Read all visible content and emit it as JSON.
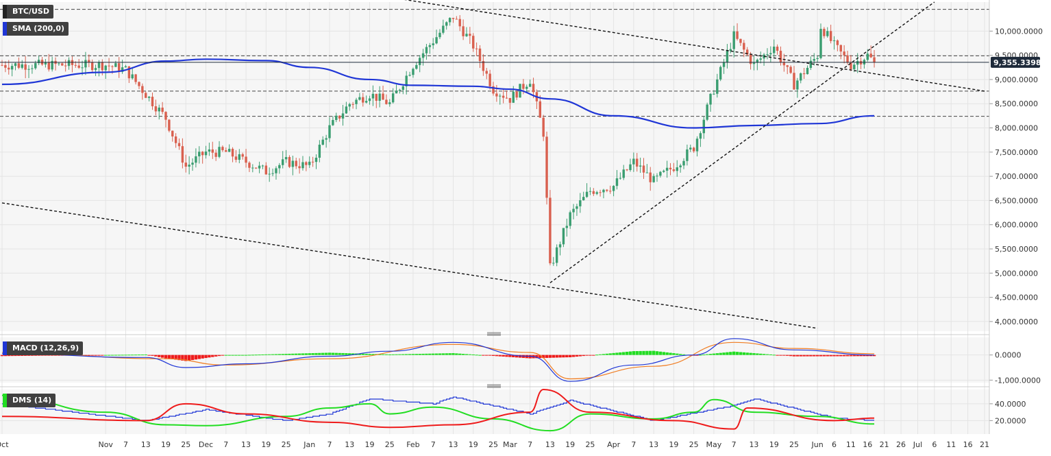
{
  "header": {
    "symbol": "BTC/USD",
    "indicator_sma": "SMA (200,0)",
    "indicator_macd": "MACD (12,26,9)",
    "indicator_dms": "DMS (14)"
  },
  "colors": {
    "background": "#f6f6f6",
    "candle_up": "#3a9d70",
    "candle_down": "#d9604f",
    "sma": "#1f36d6",
    "macd_line": "#1f36d6",
    "signal_line": "#f07d22",
    "hist_pos": "#22dd22",
    "hist_neg": "#ee1b1b",
    "dms_plus": "#22dd22",
    "dms_minus": "#ee1b1b",
    "adx": "#1f36d6",
    "price_label_bg": "#1e2a3a"
  },
  "chart_data": [
    {
      "type": "candlestick",
      "title": "BTC/USD",
      "ylim": [
        3800,
        10600
      ],
      "y_ticks": [
        "10,000.0000",
        "9,500.0000",
        "9,000.0000",
        "8,500.0000",
        "8,000.0000",
        "7,500.0000",
        "7,000.0000",
        "6,500.0000",
        "6,000.0000",
        "5,500.0000",
        "5,000.0000",
        "4,500.0000",
        "4,000.0000"
      ],
      "y_tick_values": [
        10000,
        9500,
        9000,
        8500,
        8000,
        7500,
        7000,
        6500,
        6000,
        5500,
        5000,
        4500,
        4000
      ],
      "last_price_label": "9,355.3398",
      "last_price": 9355.34,
      "key_points": [
        {
          "date": "Oct",
          "close": 9300
        },
        {
          "date": "Nov",
          "close": 9300
        },
        {
          "date": "Nov 7",
          "close": 9200
        },
        {
          "date": "Nov 13",
          "close": 8700
        },
        {
          "date": "Nov 19",
          "close": 8200
        },
        {
          "date": "Nov 25",
          "close": 7200
        },
        {
          "date": "Dec",
          "close": 7500
        },
        {
          "date": "Dec 7",
          "close": 7500
        },
        {
          "date": "Dec 13",
          "close": 7300
        },
        {
          "date": "Dec 19",
          "close": 7100
        },
        {
          "date": "Dec 25",
          "close": 7300
        },
        {
          "date": "Jan",
          "close": 7200
        },
        {
          "date": "Jan 7",
          "close": 8000
        },
        {
          "date": "Jan 13",
          "close": 8500
        },
        {
          "date": "Jan 19",
          "close": 8700
        },
        {
          "date": "Jan 25",
          "close": 8500
        },
        {
          "date": "Feb",
          "close": 9300
        },
        {
          "date": "Feb 7",
          "close": 9800
        },
        {
          "date": "Feb 13",
          "close": 10300
        },
        {
          "date": "Feb 19",
          "close": 9700
        },
        {
          "date": "Feb 25",
          "close": 8800
        },
        {
          "date": "Mar",
          "close": 8600
        },
        {
          "date": "Mar 7",
          "close": 9000
        },
        {
          "date": "Mar 11",
          "close": 7900
        },
        {
          "date": "Mar 13",
          "close": 5100
        },
        {
          "date": "Mar 19",
          "close": 6200
        },
        {
          "date": "Mar 25",
          "close": 6700
        },
        {
          "date": "Apr",
          "close": 6800
        },
        {
          "date": "Apr 7",
          "close": 7300
        },
        {
          "date": "Apr 13",
          "close": 6900
        },
        {
          "date": "Apr 19",
          "close": 7200
        },
        {
          "date": "Apr 25",
          "close": 7600
        },
        {
          "date": "May",
          "close": 8800
        },
        {
          "date": "May 7",
          "close": 9900
        },
        {
          "date": "May 13",
          "close": 9300
        },
        {
          "date": "May 19",
          "close": 9700
        },
        {
          "date": "May 25",
          "close": 8900
        },
        {
          "date": "Jun",
          "close": 9500
        },
        {
          "date": "Jun 2",
          "close": 10100
        },
        {
          "date": "Jun 6",
          "close": 9700
        },
        {
          "date": "Jun 11",
          "close": 9300
        },
        {
          "date": "Jun 16",
          "close": 9500
        },
        {
          "date": "Jun 18",
          "close": 9355
        }
      ],
      "sma_200": [
        {
          "date": "Oct",
          "value": 8900
        },
        {
          "date": "Nov",
          "value": 9150
        },
        {
          "date": "Nov 19",
          "value": 9380
        },
        {
          "date": "Dec",
          "value": 9420
        },
        {
          "date": "Dec 19",
          "value": 9390
        },
        {
          "date": "Jan",
          "value": 9250
        },
        {
          "date": "Jan 19",
          "value": 9000
        },
        {
          "date": "Feb",
          "value": 8880
        },
        {
          "date": "Feb 19",
          "value": 8860
        },
        {
          "date": "Mar",
          "value": 8800
        },
        {
          "date": "Mar 13",
          "value": 8600
        },
        {
          "date": "Apr",
          "value": 8250
        },
        {
          "date": "Apr 25",
          "value": 8000
        },
        {
          "date": "May 13",
          "value": 8050
        },
        {
          "date": "Jun",
          "value": 8090
        },
        {
          "date": "Jun 18",
          "value": 8250
        }
      ],
      "horizontal_levels": [
        10450,
        9490,
        8760,
        8240
      ],
      "trendlines": [
        {
          "from": {
            "date": "Jan 25",
            "price": 10700
          },
          "to": {
            "date": "Jul 21",
            "price": 8760
          }
        },
        {
          "from": {
            "date": "Oct",
            "price": 6450
          },
          "to": {
            "date": "Jun",
            "price": 3860
          }
        },
        {
          "from": {
            "date": "Mar 13",
            "price": 4800
          },
          "to": {
            "date": "Jul 6",
            "price": 10600
          }
        }
      ]
    },
    {
      "type": "line",
      "title": "MACD (12,26,9)",
      "ylim": [
        -1100,
        700
      ],
      "y_ticks": [
        "0.0000",
        "-1,000.0000"
      ],
      "y_tick_values": [
        0,
        -1000
      ],
      "series": [
        {
          "name": "macd",
          "points": [
            {
              "date": "Oct",
              "value": 50
            },
            {
              "date": "Nov 13",
              "value": -100
            },
            {
              "date": "Nov 25",
              "value": -500
            },
            {
              "date": "Dec 13",
              "value": -350
            },
            {
              "date": "Jan 7",
              "value": -50
            },
            {
              "date": "Jan 25",
              "value": 150
            },
            {
              "date": "Feb 13",
              "value": 500
            },
            {
              "date": "Mar 7",
              "value": -50
            },
            {
              "date": "Mar 19",
              "value": -1050
            },
            {
              "date": "Apr 7",
              "value": -400
            },
            {
              "date": "Apr 25",
              "value": 0
            },
            {
              "date": "May 7",
              "value": 650
            },
            {
              "date": "May 25",
              "value": 200
            },
            {
              "date": "Jun 18",
              "value": 0
            }
          ]
        },
        {
          "name": "signal",
          "points": [
            {
              "date": "Oct",
              "value": 100
            },
            {
              "date": "Nov 19",
              "value": -150
            },
            {
              "date": "Dec 7",
              "value": -400
            },
            {
              "date": "Jan 7",
              "value": -150
            },
            {
              "date": "Feb 13",
              "value": 420
            },
            {
              "date": "Mar 7",
              "value": 100
            },
            {
              "date": "Mar 19",
              "value": -950
            },
            {
              "date": "Apr 13",
              "value": -450
            },
            {
              "date": "May 7",
              "value": 500
            },
            {
              "date": "May 25",
              "value": 260
            },
            {
              "date": "Jun 18",
              "value": 50
            }
          ]
        }
      ]
    },
    {
      "type": "line",
      "title": "DMS (14)",
      "ylim": [
        4,
        57
      ],
      "y_ticks": [
        "40.0000",
        "20.0000"
      ],
      "y_tick_values": [
        40,
        20
      ],
      "series": [
        {
          "name": "plus_di",
          "points": [
            {
              "date": "Oct",
              "value": 50
            },
            {
              "date": "Nov",
              "value": 30
            },
            {
              "date": "Nov 19",
              "value": 15
            },
            {
              "date": "Dec",
              "value": 14
            },
            {
              "date": "Dec 25",
              "value": 25
            },
            {
              "date": "Jan 7",
              "value": 35
            },
            {
              "date": "Jan 19",
              "value": 40
            },
            {
              "date": "Jan 25",
              "value": 28
            },
            {
              "date": "Feb 7",
              "value": 36
            },
            {
              "date": "Feb 25",
              "value": 22
            },
            {
              "date": "Mar 13",
              "value": 8
            },
            {
              "date": "Mar 25",
              "value": 28
            },
            {
              "date": "Apr 13",
              "value": 22
            },
            {
              "date": "Apr 25",
              "value": 30
            },
            {
              "date": "May",
              "value": 45
            },
            {
              "date": "May 13",
              "value": 30
            },
            {
              "date": "Jun",
              "value": 25
            },
            {
              "date": "Jun 18",
              "value": 16
            }
          ]
        },
        {
          "name": "minus_di",
          "points": [
            {
              "date": "Oct",
              "value": 25
            },
            {
              "date": "Nov 13",
              "value": 20
            },
            {
              "date": "Nov 25",
              "value": 40
            },
            {
              "date": "Dec 13",
              "value": 28
            },
            {
              "date": "Jan 7",
              "value": 18
            },
            {
              "date": "Jan 25",
              "value": 12
            },
            {
              "date": "Feb 13",
              "value": 15
            },
            {
              "date": "Mar 7",
              "value": 30
            },
            {
              "date": "Mar 11",
              "value": 57
            },
            {
              "date": "Mar 25",
              "value": 30
            },
            {
              "date": "Apr 19",
              "value": 20
            },
            {
              "date": "May 7",
              "value": 10
            },
            {
              "date": "May 11",
              "value": 35
            },
            {
              "date": "Jun 6",
              "value": 20
            },
            {
              "date": "Jun 18",
              "value": 23
            }
          ]
        },
        {
          "name": "adx",
          "points": [
            {
              "date": "Oct",
              "value": 40
            },
            {
              "date": "Nov 13",
              "value": 20
            },
            {
              "date": "Dec",
              "value": 33
            },
            {
              "date": "Dec 25",
              "value": 20
            },
            {
              "date": "Jan 7",
              "value": 28
            },
            {
              "date": "Jan 19",
              "value": 46
            },
            {
              "date": "Feb 7",
              "value": 40
            },
            {
              "date": "Feb 13",
              "value": 48
            },
            {
              "date": "Mar 7",
              "value": 28
            },
            {
              "date": "Mar 19",
              "value": 44
            },
            {
              "date": "Apr 13",
              "value": 20
            },
            {
              "date": "May 7",
              "value": 38
            },
            {
              "date": "May 13",
              "value": 46
            },
            {
              "date": "Jun 6",
              "value": 23
            },
            {
              "date": "Jun 18",
              "value": 20
            }
          ]
        }
      ]
    }
  ],
  "x_axis": {
    "labels": [
      {
        "text": "Oct",
        "date": "Oct"
      },
      {
        "text": "Nov",
        "date": "Nov"
      },
      {
        "text": "7",
        "date": "Nov 7"
      },
      {
        "text": "13",
        "date": "Nov 13"
      },
      {
        "text": "19",
        "date": "Nov 19"
      },
      {
        "text": "25",
        "date": "Nov 25"
      },
      {
        "text": "Dec",
        "date": "Dec"
      },
      {
        "text": "7",
        "date": "Dec 7"
      },
      {
        "text": "13",
        "date": "Dec 13"
      },
      {
        "text": "19",
        "date": "Dec 19"
      },
      {
        "text": "25",
        "date": "Dec 25"
      },
      {
        "text": "Jan",
        "date": "Jan"
      },
      {
        "text": "7",
        "date": "Jan 7"
      },
      {
        "text": "13",
        "date": "Jan 13"
      },
      {
        "text": "19",
        "date": "Jan 19"
      },
      {
        "text": "25",
        "date": "Jan 25"
      },
      {
        "text": "Feb",
        "date": "Feb"
      },
      {
        "text": "7",
        "date": "Feb 7"
      },
      {
        "text": "13",
        "date": "Feb 13"
      },
      {
        "text": "19",
        "date": "Feb 19"
      },
      {
        "text": "25",
        "date": "Feb 25"
      },
      {
        "text": "Mar",
        "date": "Mar"
      },
      {
        "text": "7",
        "date": "Mar 7"
      },
      {
        "text": "13",
        "date": "Mar 13"
      },
      {
        "text": "19",
        "date": "Mar 19"
      },
      {
        "text": "25",
        "date": "Mar 25"
      },
      {
        "text": "Apr",
        "date": "Apr"
      },
      {
        "text": "7",
        "date": "Apr 7"
      },
      {
        "text": "13",
        "date": "Apr 13"
      },
      {
        "text": "19",
        "date": "Apr 19"
      },
      {
        "text": "25",
        "date": "Apr 25"
      },
      {
        "text": "May",
        "date": "May"
      },
      {
        "text": "7",
        "date": "May 7"
      },
      {
        "text": "13",
        "date": "May 13"
      },
      {
        "text": "19",
        "date": "May 19"
      },
      {
        "text": "25",
        "date": "May 25"
      },
      {
        "text": "Jun",
        "date": "Jun"
      },
      {
        "text": "6",
        "date": "Jun 6"
      },
      {
        "text": "11",
        "date": "Jun 11"
      },
      {
        "text": "16",
        "date": "Jun 16"
      },
      {
        "text": "21",
        "date": "Jun 21"
      },
      {
        "text": "26",
        "date": "Jun 26"
      },
      {
        "text": "Jul",
        "date": "Jul"
      },
      {
        "text": "6",
        "date": "Jul 6"
      },
      {
        "text": "11",
        "date": "Jul 11"
      },
      {
        "text": "16",
        "date": "Jul 16"
      },
      {
        "text": "21",
        "date": "Jul 21"
      }
    ]
  }
}
